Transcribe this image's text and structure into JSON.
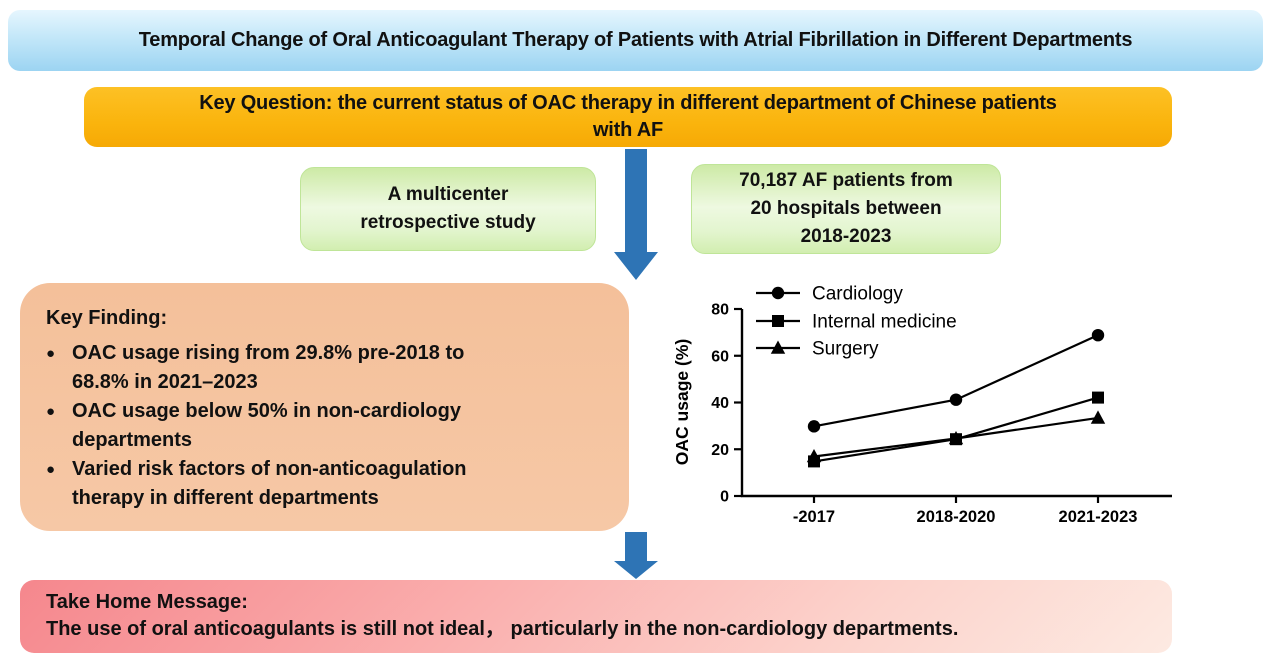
{
  "banner": {
    "title": "Temporal Change of Oral Anticoagulant Therapy of Patients with Atrial Fibrillation in Different Departments"
  },
  "key_question": {
    "lines": [
      "Key Question: the current status of OAC therapy in different department of Chinese patients",
      "with AF"
    ]
  },
  "study_box": {
    "lines": [
      "A multicenter",
      "retrospective study"
    ]
  },
  "patients_box": {
    "lines": [
      "70,187 AF patients from",
      "20 hospitals between",
      "2018-2023"
    ]
  },
  "key_finding": {
    "heading": "Key Finding:",
    "bullet_icon": "●",
    "bullets": [
      {
        "lines": [
          "OAC usage rising from 29.8% pre-2018 to",
          "68.8% in 2021–2023"
        ]
      },
      {
        "lines": [
          "OAC usage below 50% in non-cardiology",
          "departments"
        ]
      },
      {
        "lines": [
          "Varied risk factors of non-anticoagulation",
          "therapy in different departments"
        ]
      }
    ]
  },
  "take_home": {
    "heading": "Take Home Message:",
    "text": "The use of oral anticoagulants is still not ideal， particularly in the non-cardiology departments."
  },
  "chart_data": {
    "type": "line",
    "title": "",
    "categories": [
      "-2017",
      "2018-2020",
      "2021-2023"
    ],
    "series": [
      {
        "name": "Cardiology",
        "marker": "circle",
        "values": [
          29.8,
          41.2,
          68.8
        ]
      },
      {
        "name": "Internal medicine",
        "marker": "square",
        "values": [
          14.8,
          24.3,
          42.1
        ]
      },
      {
        "name": "Surgery",
        "marker": "triangle",
        "values": [
          16.9,
          24.6,
          33.4
        ]
      }
    ],
    "xlabel": "",
    "ylabel": "OAC usage (%)",
    "ylim": [
      0,
      80
    ],
    "yticks": [
      0,
      20,
      40,
      60,
      80
    ],
    "line_color": "#000000",
    "legend_position": "top-left",
    "grid": false
  },
  "colors": {
    "arrow_blue": "#2e74b5",
    "banner_blue_top": "#e6f6fe",
    "banner_blue_bottom": "#9cd4f2",
    "key_question_orange": "#fab40d",
    "green_box": "#d2eeb0",
    "key_finding_peach": "#f5c4a0",
    "take_home_pink": "#f5878d"
  }
}
